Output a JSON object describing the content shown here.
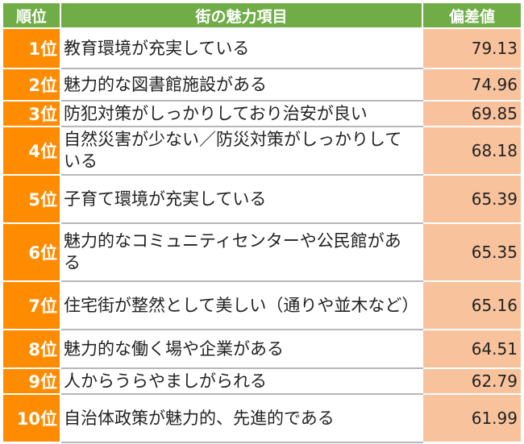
{
  "header": {
    "rank": "順位",
    "item": "街の魅力項目",
    "score": "偏差値"
  },
  "rows": [
    {
      "rank": "1位",
      "item": "教育環境が充実している",
      "score": "79.13"
    },
    {
      "rank": "2位",
      "item": "魅力的な図書館施設がある",
      "score": "74.96"
    },
    {
      "rank": "3位",
      "item": "防犯対策がしっかりしており治安が良い",
      "score": "69.85"
    },
    {
      "rank": "4位",
      "item": "自然災害が少ない／防災対策がしっかりしている",
      "score": "68.18"
    },
    {
      "rank": "5位",
      "item": "子育て環境が充実している",
      "score": "65.39"
    },
    {
      "rank": "6位",
      "item": "魅力的なコミュニティセンターや公民館がある",
      "score": "65.35"
    },
    {
      "rank": "7位",
      "item": "住宅街が整然として美しい（通りや並木など）",
      "score": "65.16"
    },
    {
      "rank": "8位",
      "item": "魅力的な働く場や企業がある",
      "score": "64.51"
    },
    {
      "rank": "9位",
      "item": "人からうらやましがられる",
      "score": "62.79"
    },
    {
      "rank": "10位",
      "item": "自治体政策が魅力的、先進的である",
      "score": "61.99"
    }
  ]
}
